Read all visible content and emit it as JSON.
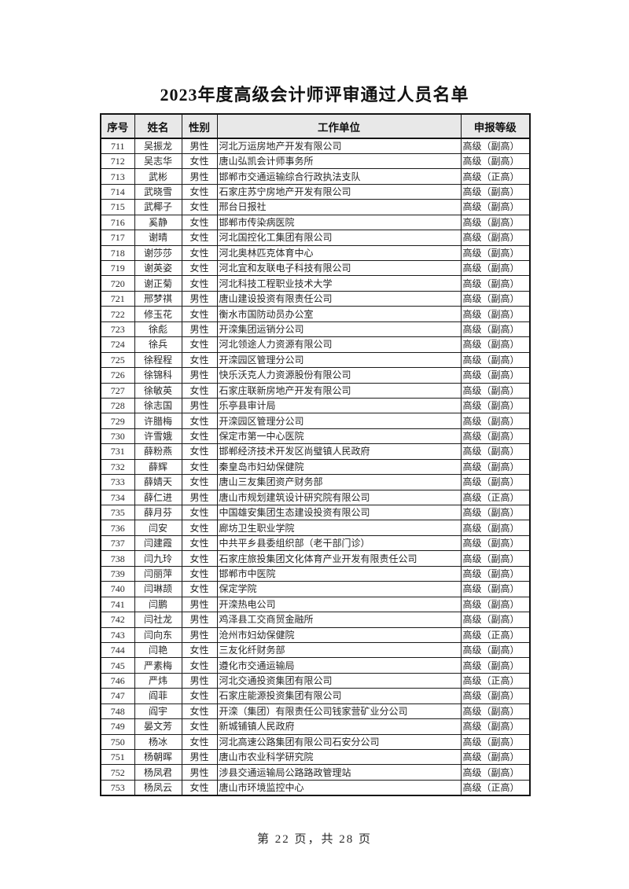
{
  "page": {
    "title": "2023年度高级会计师评审通过人员名单",
    "footer": "第 22 页，共 28 页"
  },
  "table": {
    "headers": [
      "序号",
      "姓名",
      "性别",
      "工作单位",
      "申报等级"
    ],
    "rows": [
      [
        "711",
        "吴振龙",
        "男性",
        "河北万运房地产开发有限公司",
        "高级（副高）"
      ],
      [
        "712",
        "吴志华",
        "女性",
        "唐山弘凯会计师事务所",
        "高级（副高）"
      ],
      [
        "713",
        "武彬",
        "男性",
        "邯郸市交通运输综合行政执法支队",
        "高级（正高）"
      ],
      [
        "714",
        "武晓雪",
        "女性",
        "石家庄苏宁房地产开发有限公司",
        "高级（副高）"
      ],
      [
        "715",
        "武椰子",
        "女性",
        "邢台日报社",
        "高级（副高）"
      ],
      [
        "716",
        "奚静",
        "女性",
        "邯郸市传染病医院",
        "高级（副高）"
      ],
      [
        "717",
        "谢晴",
        "女性",
        "河北国控化工集团有限公司",
        "高级（副高）"
      ],
      [
        "718",
        "谢莎莎",
        "女性",
        "河北奥林匹克体育中心",
        "高级（副高）"
      ],
      [
        "719",
        "谢英姿",
        "女性",
        "河北宜和友联电子科技有限公司",
        "高级（副高）"
      ],
      [
        "720",
        "谢正菊",
        "女性",
        "河北科技工程职业技术大学",
        "高级（副高）"
      ],
      [
        "721",
        "邢梦祺",
        "男性",
        "唐山建设投资有限责任公司",
        "高级（副高）"
      ],
      [
        "722",
        "修玉花",
        "女性",
        "衡水市国防动员办公室",
        "高级（副高）"
      ],
      [
        "723",
        "徐彪",
        "男性",
        "开滦集团运销分公司",
        "高级（副高）"
      ],
      [
        "724",
        "徐兵",
        "女性",
        "河北领途人力资源有限公司",
        "高级（副高）"
      ],
      [
        "725",
        "徐程程",
        "女性",
        "开滦园区管理分公司",
        "高级（副高）"
      ],
      [
        "726",
        "徐锦科",
        "男性",
        "快乐沃克人力资源股份有限公司",
        "高级（副高）"
      ],
      [
        "727",
        "徐敏英",
        "女性",
        "石家庄联新房地产开发有限公司",
        "高级（副高）"
      ],
      [
        "728",
        "徐志国",
        "男性",
        "乐亭县审计局",
        "高级（副高）"
      ],
      [
        "729",
        "许腊梅",
        "女性",
        "开滦园区管理分公司",
        "高级（副高）"
      ],
      [
        "730",
        "许雪娥",
        "女性",
        "保定市第一中心医院",
        "高级（副高）"
      ],
      [
        "731",
        "薛粉燕",
        "女性",
        "邯郸经济技术开发区尚璧镇人民政府",
        "高级（副高）"
      ],
      [
        "732",
        "薛辉",
        "女性",
        "秦皇岛市妇幼保健院",
        "高级（副高）"
      ],
      [
        "733",
        "薛婧天",
        "女性",
        "唐山三友集团资产财务部",
        "高级（副高）"
      ],
      [
        "734",
        "薛仁进",
        "男性",
        "唐山市规划建筑设计研究院有限公司",
        "高级（正高）"
      ],
      [
        "735",
        "薛月芬",
        "女性",
        "中国雄安集团生态建设投资有限公司",
        "高级（副高）"
      ],
      [
        "736",
        "闫安",
        "女性",
        "廊坊卫生职业学院",
        "高级（副高）"
      ],
      [
        "737",
        "闫建霞",
        "女性",
        "中共平乡县委组织部（老干部门诊）",
        "高级（副高）"
      ],
      [
        "738",
        "闫九玲",
        "女性",
        "石家庄旅投集团文化体育产业开发有限责任公司",
        "高级（副高）"
      ],
      [
        "739",
        "闫丽萍",
        "女性",
        "邯郸市中医院",
        "高级（副高）"
      ],
      [
        "740",
        "闫琳颉",
        "女性",
        "保定学院",
        "高级（副高）"
      ],
      [
        "741",
        "闫鹏",
        "男性",
        "开滦热电公司",
        "高级（副高）"
      ],
      [
        "742",
        "闫社龙",
        "男性",
        "鸡泽县工交商贸金融所",
        "高级（副高）"
      ],
      [
        "743",
        "闫向东",
        "男性",
        "沧州市妇幼保健院",
        "高级（正高）"
      ],
      [
        "744",
        "闫艳",
        "女性",
        "三友化纤财务部",
        "高级（副高）"
      ],
      [
        "745",
        "严素梅",
        "女性",
        "遵化市交通运输局",
        "高级（副高）"
      ],
      [
        "746",
        "严炜",
        "男性",
        "河北交通投资集团有限公司",
        "高级（正高）"
      ],
      [
        "747",
        "阎菲",
        "女性",
        "石家庄能源投资集团有限公司",
        "高级（副高）"
      ],
      [
        "748",
        "阎宇",
        "女性",
        "开滦（集团）有限责任公司钱家营矿业分公司",
        "高级（副高）"
      ],
      [
        "749",
        "晏文芳",
        "女性",
        "新城铺镇人民政府",
        "高级（副高）"
      ],
      [
        "750",
        "杨冰",
        "女性",
        "河北高速公路集团有限公司石安分公司",
        "高级（副高）"
      ],
      [
        "751",
        "杨朝晖",
        "男性",
        "唐山市农业科学研究院",
        "高级（副高）"
      ],
      [
        "752",
        "杨凤君",
        "男性",
        "涉县交通运输局公路路政管理站",
        "高级（副高）"
      ],
      [
        "753",
        "杨凤云",
        "女性",
        "唐山市环境监控中心",
        "高级（正高）"
      ]
    ]
  }
}
